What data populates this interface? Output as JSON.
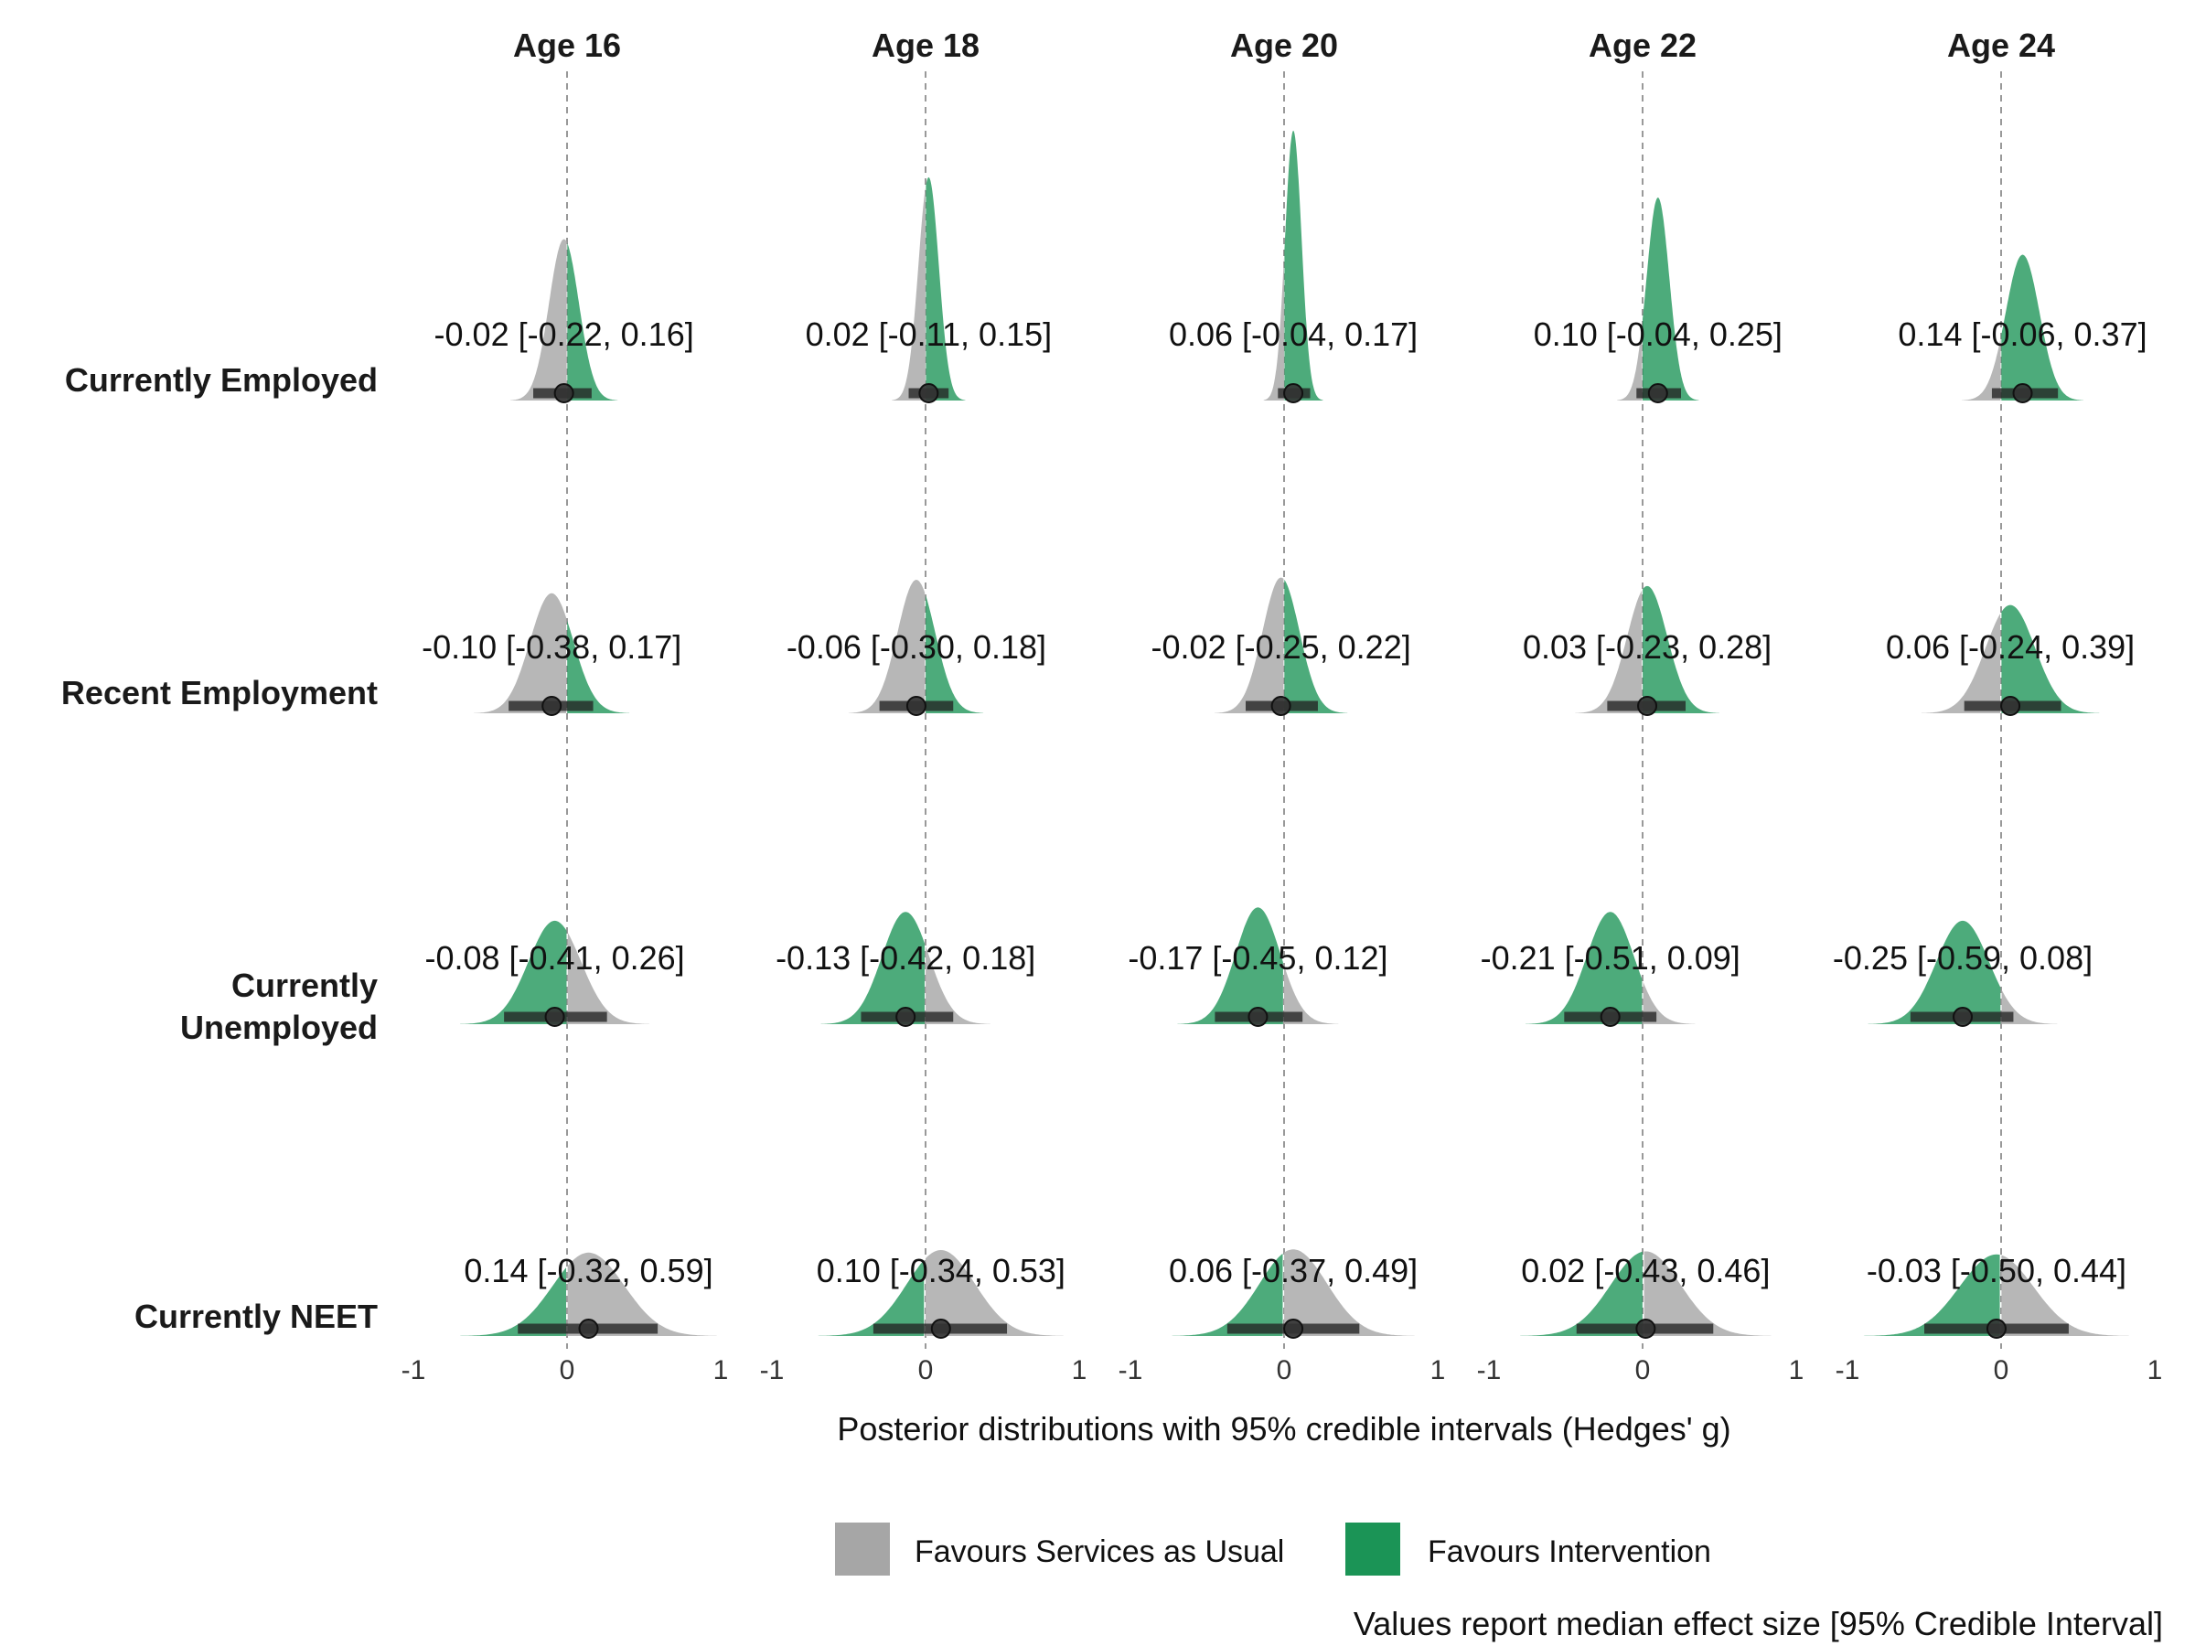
{
  "chart_data": {
    "type": "area",
    "subtype": "posterior-density-grid",
    "columns": [
      "Age 16",
      "Age 18",
      "Age 20",
      "Age 22",
      "Age 24"
    ],
    "rows": [
      "Currently Employed",
      "Recent Employment",
      "Currently Unemployed",
      "Currently NEET"
    ],
    "xlabel": "Posterior distributions with 95% credible intervals (Hedges' g)",
    "xlim": [
      -1,
      1
    ],
    "xticks": [
      "-1",
      "0",
      "1"
    ],
    "reference_line": 0,
    "legend": {
      "placement": "bottom",
      "items": [
        {
          "label": "Favours Services as Usual",
          "color": "#a6a6a6"
        },
        {
          "label": "Favours Intervention",
          "color": "#1b9456"
        }
      ]
    },
    "caption": "Values report median effect size [95% Credible Interval]",
    "colors": {
      "services": "#b3b3b3",
      "intervention": "#1b9456",
      "interval": "#222222",
      "reference": "#999999"
    },
    "favours_intervention_when": [
      "positive",
      "positive",
      "negative",
      "negative"
    ],
    "cells": [
      [
        {
          "median": -0.02,
          "lower": -0.22,
          "upper": 0.16,
          "label": "-0.02 [-0.22, 0.16]"
        },
        {
          "median": 0.02,
          "lower": -0.11,
          "upper": 0.15,
          "label": "0.02 [-0.11, 0.15]"
        },
        {
          "median": 0.06,
          "lower": -0.04,
          "upper": 0.17,
          "label": "0.06 [-0.04, 0.17]"
        },
        {
          "median": 0.1,
          "lower": -0.04,
          "upper": 0.25,
          "label": "0.10 [-0.04, 0.25]"
        },
        {
          "median": 0.14,
          "lower": -0.06,
          "upper": 0.37,
          "label": "0.14 [-0.06, 0.37]"
        }
      ],
      [
        {
          "median": -0.1,
          "lower": -0.38,
          "upper": 0.17,
          "label": "-0.10 [-0.38, 0.17]"
        },
        {
          "median": -0.06,
          "lower": -0.3,
          "upper": 0.18,
          "label": "-0.06 [-0.30, 0.18]"
        },
        {
          "median": -0.02,
          "lower": -0.25,
          "upper": 0.22,
          "label": "-0.02 [-0.25, 0.22]"
        },
        {
          "median": 0.03,
          "lower": -0.23,
          "upper": 0.28,
          "label": "0.03 [-0.23, 0.28]"
        },
        {
          "median": 0.06,
          "lower": -0.24,
          "upper": 0.39,
          "label": "0.06 [-0.24, 0.39]"
        }
      ],
      [
        {
          "median": -0.08,
          "lower": -0.41,
          "upper": 0.26,
          "label": "-0.08 [-0.41, 0.26]"
        },
        {
          "median": -0.13,
          "lower": -0.42,
          "upper": 0.18,
          "label": "-0.13 [-0.42, 0.18]"
        },
        {
          "median": -0.17,
          "lower": -0.45,
          "upper": 0.12,
          "label": "-0.17 [-0.45, 0.12]"
        },
        {
          "median": -0.21,
          "lower": -0.51,
          "upper": 0.09,
          "label": "-0.21 [-0.51, 0.09]"
        },
        {
          "median": -0.25,
          "lower": -0.59,
          "upper": 0.08,
          "label": "-0.25 [-0.59, 0.08]"
        }
      ],
      [
        {
          "median": 0.14,
          "lower": -0.32,
          "upper": 0.59,
          "label": "0.14 [-0.32, 0.59]"
        },
        {
          "median": 0.1,
          "lower": -0.34,
          "upper": 0.53,
          "label": "0.10 [-0.34, 0.53]"
        },
        {
          "median": 0.06,
          "lower": -0.37,
          "upper": 0.49,
          "label": "0.06 [-0.37, 0.49]"
        },
        {
          "median": 0.02,
          "lower": -0.43,
          "upper": 0.46,
          "label": "0.02 [-0.43, 0.46]"
        },
        {
          "median": -0.03,
          "lower": -0.5,
          "upper": 0.44,
          "label": "-0.03 [-0.50, 0.44]"
        }
      ]
    ]
  }
}
